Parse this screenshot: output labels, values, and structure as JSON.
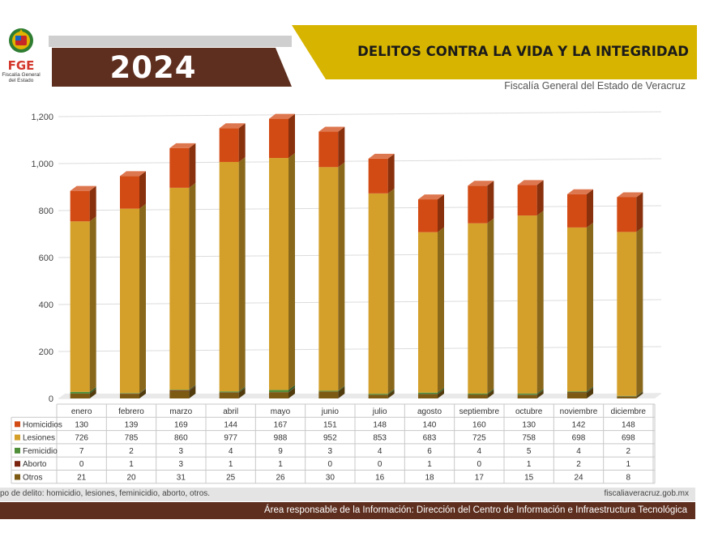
{
  "header": {
    "logo_abbr": "FGE",
    "logo_subtitle": "Fiscalía General del Estado",
    "year": "2024",
    "title": "DELITOS CONTRA LA VIDA Y LA INTEGRIDAD",
    "subtitle": "Fiscalía General del Estado de Veracruz"
  },
  "colors": {
    "gold_bar": "#d6b400",
    "brown_bar": "#5e2f1f",
    "homicidios": "#d24a14",
    "lesiones": "#d4a02a",
    "feminicidio": "#4f8f3a",
    "aborto": "#7a2410",
    "otros": "#7d5a14"
  },
  "chart_data": {
    "type": "bar",
    "stacked": true,
    "categories": [
      "enero",
      "febrero",
      "marzo",
      "abril",
      "mayo",
      "junio",
      "julio",
      "agosto",
      "septiembre",
      "octubre",
      "noviembre",
      "diciembre"
    ],
    "series": [
      {
        "name": "Homicidios",
        "values": [
          130,
          139,
          169,
          144,
          167,
          151,
          148,
          140,
          160,
          130,
          142,
          148
        ]
      },
      {
        "name": "Lesiones",
        "values": [
          726,
          785,
          860,
          977,
          988,
          952,
          853,
          683,
          725,
          758,
          698,
          698
        ]
      },
      {
        "name": "Femicidio",
        "values": [
          7,
          2,
          3,
          4,
          9,
          3,
          4,
          6,
          4,
          5,
          4,
          2
        ]
      },
      {
        "name": "Aborto",
        "values": [
          0,
          1,
          3,
          1,
          1,
          0,
          0,
          1,
          0,
          1,
          2,
          1
        ]
      },
      {
        "name": "Otros",
        "values": [
          21,
          20,
          31,
          25,
          26,
          30,
          16,
          18,
          17,
          15,
          24,
          8
        ]
      }
    ],
    "yticks": [
      "0",
      "200",
      "400",
      "600",
      "800",
      "1,000",
      "1,200"
    ],
    "ylim": [
      0,
      1200
    ],
    "grid": true,
    "legend": "data-table"
  },
  "footer": {
    "note": "po de delito: homicidio, lesiones, feminicidio, aborto, otros.",
    "url": "fiscaliaveracruz.gob.mx",
    "area": "Área responsable de la Información: Dirección del Centro de Información e Infraestructura Tecnológica"
  }
}
